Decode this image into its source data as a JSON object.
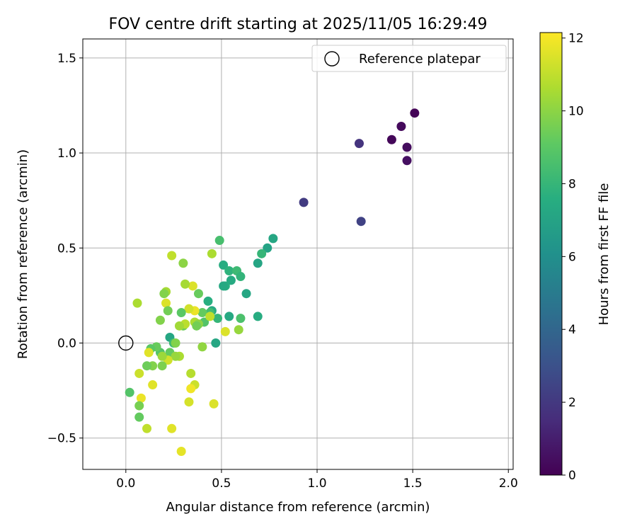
{
  "chart_data": {
    "type": "scatter",
    "title": "FOV centre drift starting at 2025/11/05 16:29:49",
    "xlabel": "Angular distance from reference (arcmin)",
    "ylabel": "Rotation from reference (arcmin)",
    "xlim": [
      -0.225,
      2.025
    ],
    "ylim": [
      -0.665,
      1.6
    ],
    "xticks": [
      0.0,
      0.5,
      1.0,
      1.5,
      2.0
    ],
    "xtick_labels": [
      "0.0",
      "0.5",
      "1.0",
      "1.5",
      "2.0"
    ],
    "yticks": [
      -0.5,
      0.0,
      0.5,
      1.0,
      1.5
    ],
    "ytick_labels": [
      "−0.5",
      "0.0",
      "0.5",
      "1.0",
      "1.5"
    ],
    "grid": true,
    "legend": {
      "position": "upper-right",
      "entries": [
        "Reference platepar"
      ]
    },
    "reference_point": {
      "name": "Reference platepar",
      "x": 0.0,
      "y": 0.0
    },
    "colorbar": {
      "label": "Hours from first FF file",
      "colormap": "viridis",
      "range": [
        0,
        12.15
      ],
      "ticks": [
        0,
        2,
        4,
        6,
        8,
        10,
        12
      ],
      "tick_labels": [
        "0",
        "2",
        "4",
        "6",
        "8",
        "10",
        "12"
      ]
    },
    "series": [
      {
        "name": "FOV centre drift",
        "points": [
          [
            1.51,
            1.21,
            0.1
          ],
          [
            1.44,
            1.14,
            0.3
          ],
          [
            1.39,
            1.07,
            0.2
          ],
          [
            1.47,
            1.03,
            0.4
          ],
          [
            1.47,
            0.96,
            0.5
          ],
          [
            1.22,
            1.05,
            1.8
          ],
          [
            0.93,
            0.74,
            2.1
          ],
          [
            1.23,
            0.64,
            2.4
          ],
          [
            0.77,
            0.55,
            7.2
          ],
          [
            0.74,
            0.5,
            7.0
          ],
          [
            0.69,
            0.42,
            7.1
          ],
          [
            0.71,
            0.47,
            8.0
          ],
          [
            0.49,
            0.54,
            8.5
          ],
          [
            0.51,
            0.41,
            7.5
          ],
          [
            0.54,
            0.38,
            7.8
          ],
          [
            0.58,
            0.38,
            8.2
          ],
          [
            0.6,
            0.35,
            7.9
          ],
          [
            0.55,
            0.33,
            7.4
          ],
          [
            0.52,
            0.3,
            7.6
          ],
          [
            0.51,
            0.3,
            7.3
          ],
          [
            0.63,
            0.26,
            7.2
          ],
          [
            0.69,
            0.14,
            7.5
          ],
          [
            0.54,
            0.14,
            7.3
          ],
          [
            0.6,
            0.13,
            8.6
          ],
          [
            0.48,
            0.13,
            8.0
          ],
          [
            0.43,
            0.22,
            7.6
          ],
          [
            0.45,
            0.17,
            7.4
          ],
          [
            0.47,
            0.0,
            7.2
          ],
          [
            0.44,
            0.16,
            8.4
          ],
          [
            0.41,
            0.11,
            8.8
          ],
          [
            0.4,
            0.16,
            9.2
          ],
          [
            0.38,
            0.26,
            9.3
          ],
          [
            0.4,
            -0.02,
            10.1
          ],
          [
            0.59,
            0.07,
            10.2
          ],
          [
            0.52,
            0.06,
            11.5
          ],
          [
            0.44,
            0.14,
            11.0
          ],
          [
            0.45,
            0.47,
            10.6
          ],
          [
            0.36,
            0.17,
            11.8
          ],
          [
            0.35,
            0.3,
            11.5
          ],
          [
            0.36,
            0.11,
            10.6
          ],
          [
            0.38,
            0.1,
            10.0
          ],
          [
            0.37,
            0.09,
            9.5
          ],
          [
            0.33,
            0.18,
            11.3
          ],
          [
            0.31,
            0.31,
            10.5
          ],
          [
            0.3,
            0.42,
            10.0
          ],
          [
            0.29,
            0.16,
            9.0
          ],
          [
            0.3,
            0.09,
            9.4
          ],
          [
            0.31,
            0.1,
            10.9
          ],
          [
            0.28,
            0.09,
            10.4
          ],
          [
            0.24,
            0.46,
            11.0
          ],
          [
            0.21,
            0.27,
            10.5
          ],
          [
            0.2,
            0.26,
            9.8
          ],
          [
            0.21,
            0.21,
            11.5
          ],
          [
            0.22,
            0.17,
            9.5
          ],
          [
            0.18,
            0.12,
            9.8
          ],
          [
            0.23,
            0.03,
            7.2
          ],
          [
            0.25,
            0.0,
            8.2
          ],
          [
            0.26,
            0.0,
            9.8
          ],
          [
            0.28,
            -0.07,
            10.6
          ],
          [
            0.23,
            -0.05,
            9.2
          ],
          [
            0.26,
            -0.07,
            10.2
          ],
          [
            0.22,
            -0.09,
            11.3
          ],
          [
            0.19,
            -0.12,
            9.7
          ],
          [
            0.18,
            -0.05,
            8.8
          ],
          [
            0.16,
            -0.02,
            9.3
          ],
          [
            0.13,
            -0.03,
            9.0
          ],
          [
            0.19,
            -0.07,
            10.3
          ],
          [
            0.14,
            -0.12,
            9.8
          ],
          [
            0.11,
            -0.12,
            9.4
          ],
          [
            0.12,
            -0.05,
            11.6
          ],
          [
            0.06,
            0.21,
            10.6
          ],
          [
            0.07,
            -0.16,
            11.2
          ],
          [
            0.14,
            -0.22,
            11.6
          ],
          [
            0.34,
            -0.16,
            10.8
          ],
          [
            0.36,
            -0.22,
            11.2
          ],
          [
            0.34,
            -0.24,
            11.9
          ],
          [
            0.46,
            -0.32,
            11.5
          ],
          [
            0.33,
            -0.31,
            11.4
          ],
          [
            0.24,
            -0.45,
            11.6
          ],
          [
            0.29,
            -0.57,
            11.7
          ],
          [
            0.11,
            -0.45,
            11.0
          ],
          [
            0.08,
            -0.29,
            11.8
          ],
          [
            0.07,
            -0.33,
            9.6
          ],
          [
            0.07,
            -0.39,
            9.2
          ],
          [
            0.02,
            -0.26,
            8.8
          ]
        ]
      }
    ]
  }
}
